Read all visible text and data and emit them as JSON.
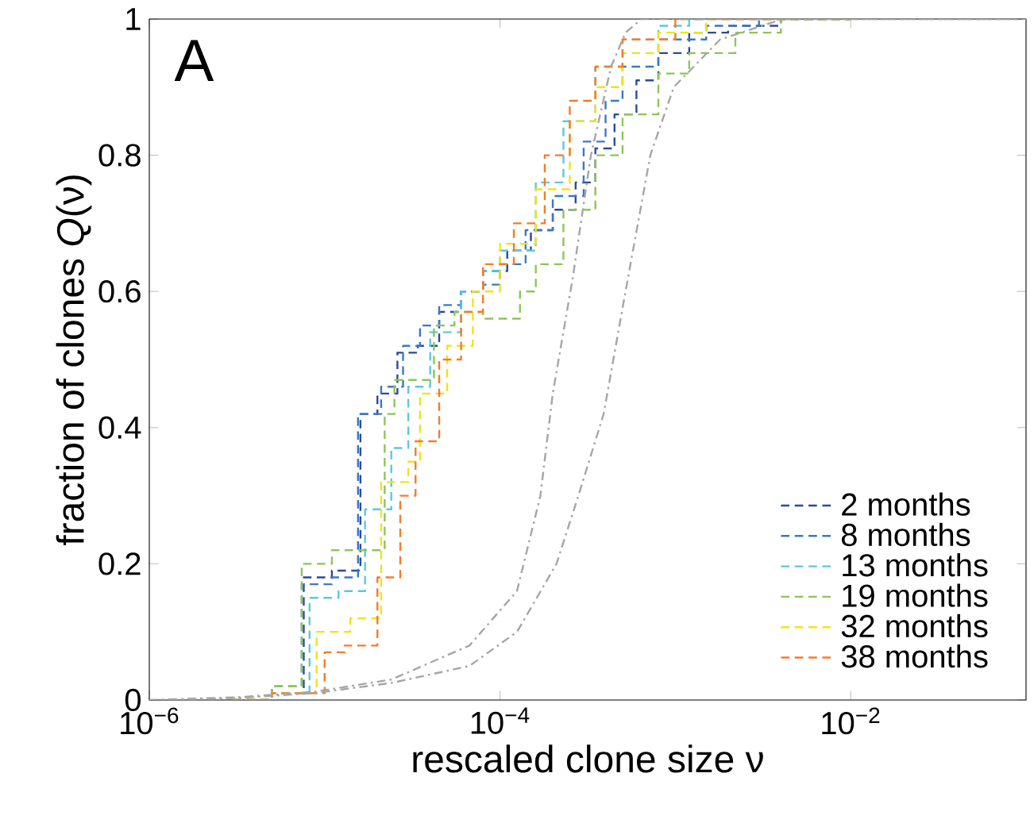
{
  "chart_data": {
    "type": "step",
    "xlabel": "rescaled clone size ν",
    "ylabel": "fraction of clones *Q*(ν)",
    "annotations": [
      "A"
    ],
    "log": "x",
    "xlim": [
      1e-06,
      0.1
    ],
    "ylim": [
      0,
      1
    ],
    "xticks": [
      {
        "value": 1e-06,
        "label": "10$^{−6}$"
      },
      {
        "value": 0.0001,
        "label": "10$^{−4}$"
      },
      {
        "value": 0.01,
        "label": "10$^{−2}$"
      }
    ],
    "yticks": [
      0,
      0.2,
      0.4,
      0.6,
      0.8,
      1
    ],
    "grid": false,
    "legend": "bottom right",
    "line_style": "dashed",
    "series": [
      {
        "name": "2 months",
        "color": "#2b4a9b",
        "x": [
          3e-06,
          5e-06,
          7.6e-06,
          1.1e-05,
          1.6e-05,
          2e-05,
          2.6e-05,
          3.4e-05,
          4.5e-05,
          6e-05,
          8e-05,
          0.00011,
          0.00015,
          0.0002,
          0.00027,
          0.00035,
          0.00045,
          0.0006,
          0.0008,
          0.0012,
          0.002,
          0.004,
          0.01
        ],
        "values": [
          0,
          0.01,
          0.18,
          0.19,
          0.42,
          0.45,
          0.51,
          0.52,
          0.57,
          0.6,
          0.63,
          0.66,
          0.69,
          0.72,
          0.76,
          0.81,
          0.86,
          0.91,
          0.95,
          0.98,
          0.99,
          1,
          1
        ]
      },
      {
        "name": "8 months",
        "color": "#3a78c8",
        "x": [
          3e-06,
          5e-06,
          7.4e-06,
          1.1e-05,
          1.55e-05,
          2.1e-05,
          2.8e-05,
          3.5e-05,
          4.5e-05,
          6e-05,
          8e-05,
          0.0001,
          0.00014,
          0.0002,
          0.0003,
          0.0004,
          0.0005,
          0.0008,
          0.0015,
          0.003,
          0.01
        ],
        "values": [
          0,
          0.02,
          0.17,
          0.18,
          0.42,
          0.46,
          0.52,
          0.55,
          0.58,
          0.6,
          0.61,
          0.64,
          0.69,
          0.74,
          0.82,
          0.88,
          0.93,
          0.97,
          0.99,
          1,
          1
        ]
      },
      {
        "name": "13 months",
        "color": "#5bc8e0",
        "x": [
          3e-06,
          5e-06,
          8.2e-06,
          1.2e-05,
          1.7e-05,
          2.4e-05,
          3e-05,
          4e-05,
          6e-05,
          8e-05,
          0.0001,
          0.00016,
          0.00023,
          0.00035,
          0.0005,
          0.0008,
          0.0012,
          0.003,
          0.01
        ],
        "values": [
          0,
          0.01,
          0.15,
          0.16,
          0.28,
          0.37,
          0.46,
          0.54,
          0.6,
          0.63,
          0.66,
          0.76,
          0.85,
          0.93,
          0.97,
          0.99,
          1,
          1,
          1
        ]
      },
      {
        "name": "19 months",
        "color": "#8cc657",
        "x": [
          3e-06,
          5e-06,
          7.4e-06,
          1.1e-05,
          2.2e-05,
          2.5e-05,
          4.2e-05,
          5.5e-05,
          8e-05,
          0.00013,
          0.00016,
          0.00023,
          0.00035,
          0.0005,
          0.0008,
          0.0012,
          0.0022,
          0.004,
          0.01
        ],
        "values": [
          0,
          0.02,
          0.2,
          0.22,
          0.42,
          0.47,
          0.55,
          0.57,
          0.56,
          0.6,
          0.64,
          0.72,
          0.8,
          0.86,
          0.92,
          0.95,
          0.98,
          1,
          1
        ]
      },
      {
        "name": "32 months",
        "color": "#f2e21a",
        "x": [
          3e-06,
          5e-06,
          9e-06,
          1.4e-05,
          2.1e-05,
          3e-05,
          3.5e-05,
          5e-05,
          7e-05,
          0.0001,
          0.00016,
          0.00025,
          0.00035,
          0.0005,
          0.0008,
          0.0015,
          0.01
        ],
        "values": [
          0,
          0.01,
          0.1,
          0.12,
          0.32,
          0.35,
          0.45,
          0.52,
          0.6,
          0.67,
          0.75,
          0.85,
          0.9,
          0.95,
          0.98,
          1,
          1
        ]
      },
      {
        "name": "38 months",
        "color": "#f37c2a",
        "x": [
          3e-06,
          5e-06,
          1e-05,
          1.3e-05,
          2e-05,
          2.7e-05,
          3.3e-05,
          4.5e-05,
          6e-05,
          8e-05,
          0.00012,
          0.00018,
          0.00025,
          0.00035,
          0.0005,
          0.001,
          0.01
        ],
        "values": [
          0,
          0.01,
          0.07,
          0.08,
          0.18,
          0.3,
          0.38,
          0.5,
          0.57,
          0.64,
          0.7,
          0.8,
          0.88,
          0.93,
          0.97,
          1,
          1
        ]
      },
      {
        "type": "line",
        "line_style": "dashdot",
        "color": "#a6a6a6",
        "x": [
          1e-06,
          3.2e-06,
          8.7e-06,
          2.4e-05,
          6.7e-05,
          0.000125,
          0.00017,
          0.0002,
          0.00026,
          0.00033,
          0.00043,
          0.00052,
          0.00064,
          0.1
        ],
        "values": [
          0,
          0.004,
          0.012,
          0.03,
          0.08,
          0.16,
          0.3,
          0.45,
          0.62,
          0.8,
          0.93,
          0.98,
          1,
          1
        ]
      },
      {
        "type": "line",
        "line_style": "dashdot",
        "color": "#a6a6a6",
        "x": [
          1.3e-06,
          3.2e-06,
          8.7e-06,
          2.4e-05,
          6.7e-05,
          0.000125,
          0.00021,
          0.00028,
          0.00039,
          0.00052,
          0.00072,
          0.00098,
          0.0018,
          0.0041,
          0.09
        ],
        "values": [
          0,
          0.003,
          0.01,
          0.025,
          0.05,
          0.1,
          0.2,
          0.3,
          0.42,
          0.6,
          0.8,
          0.9,
          0.97,
          1,
          1
        ]
      }
    ]
  }
}
